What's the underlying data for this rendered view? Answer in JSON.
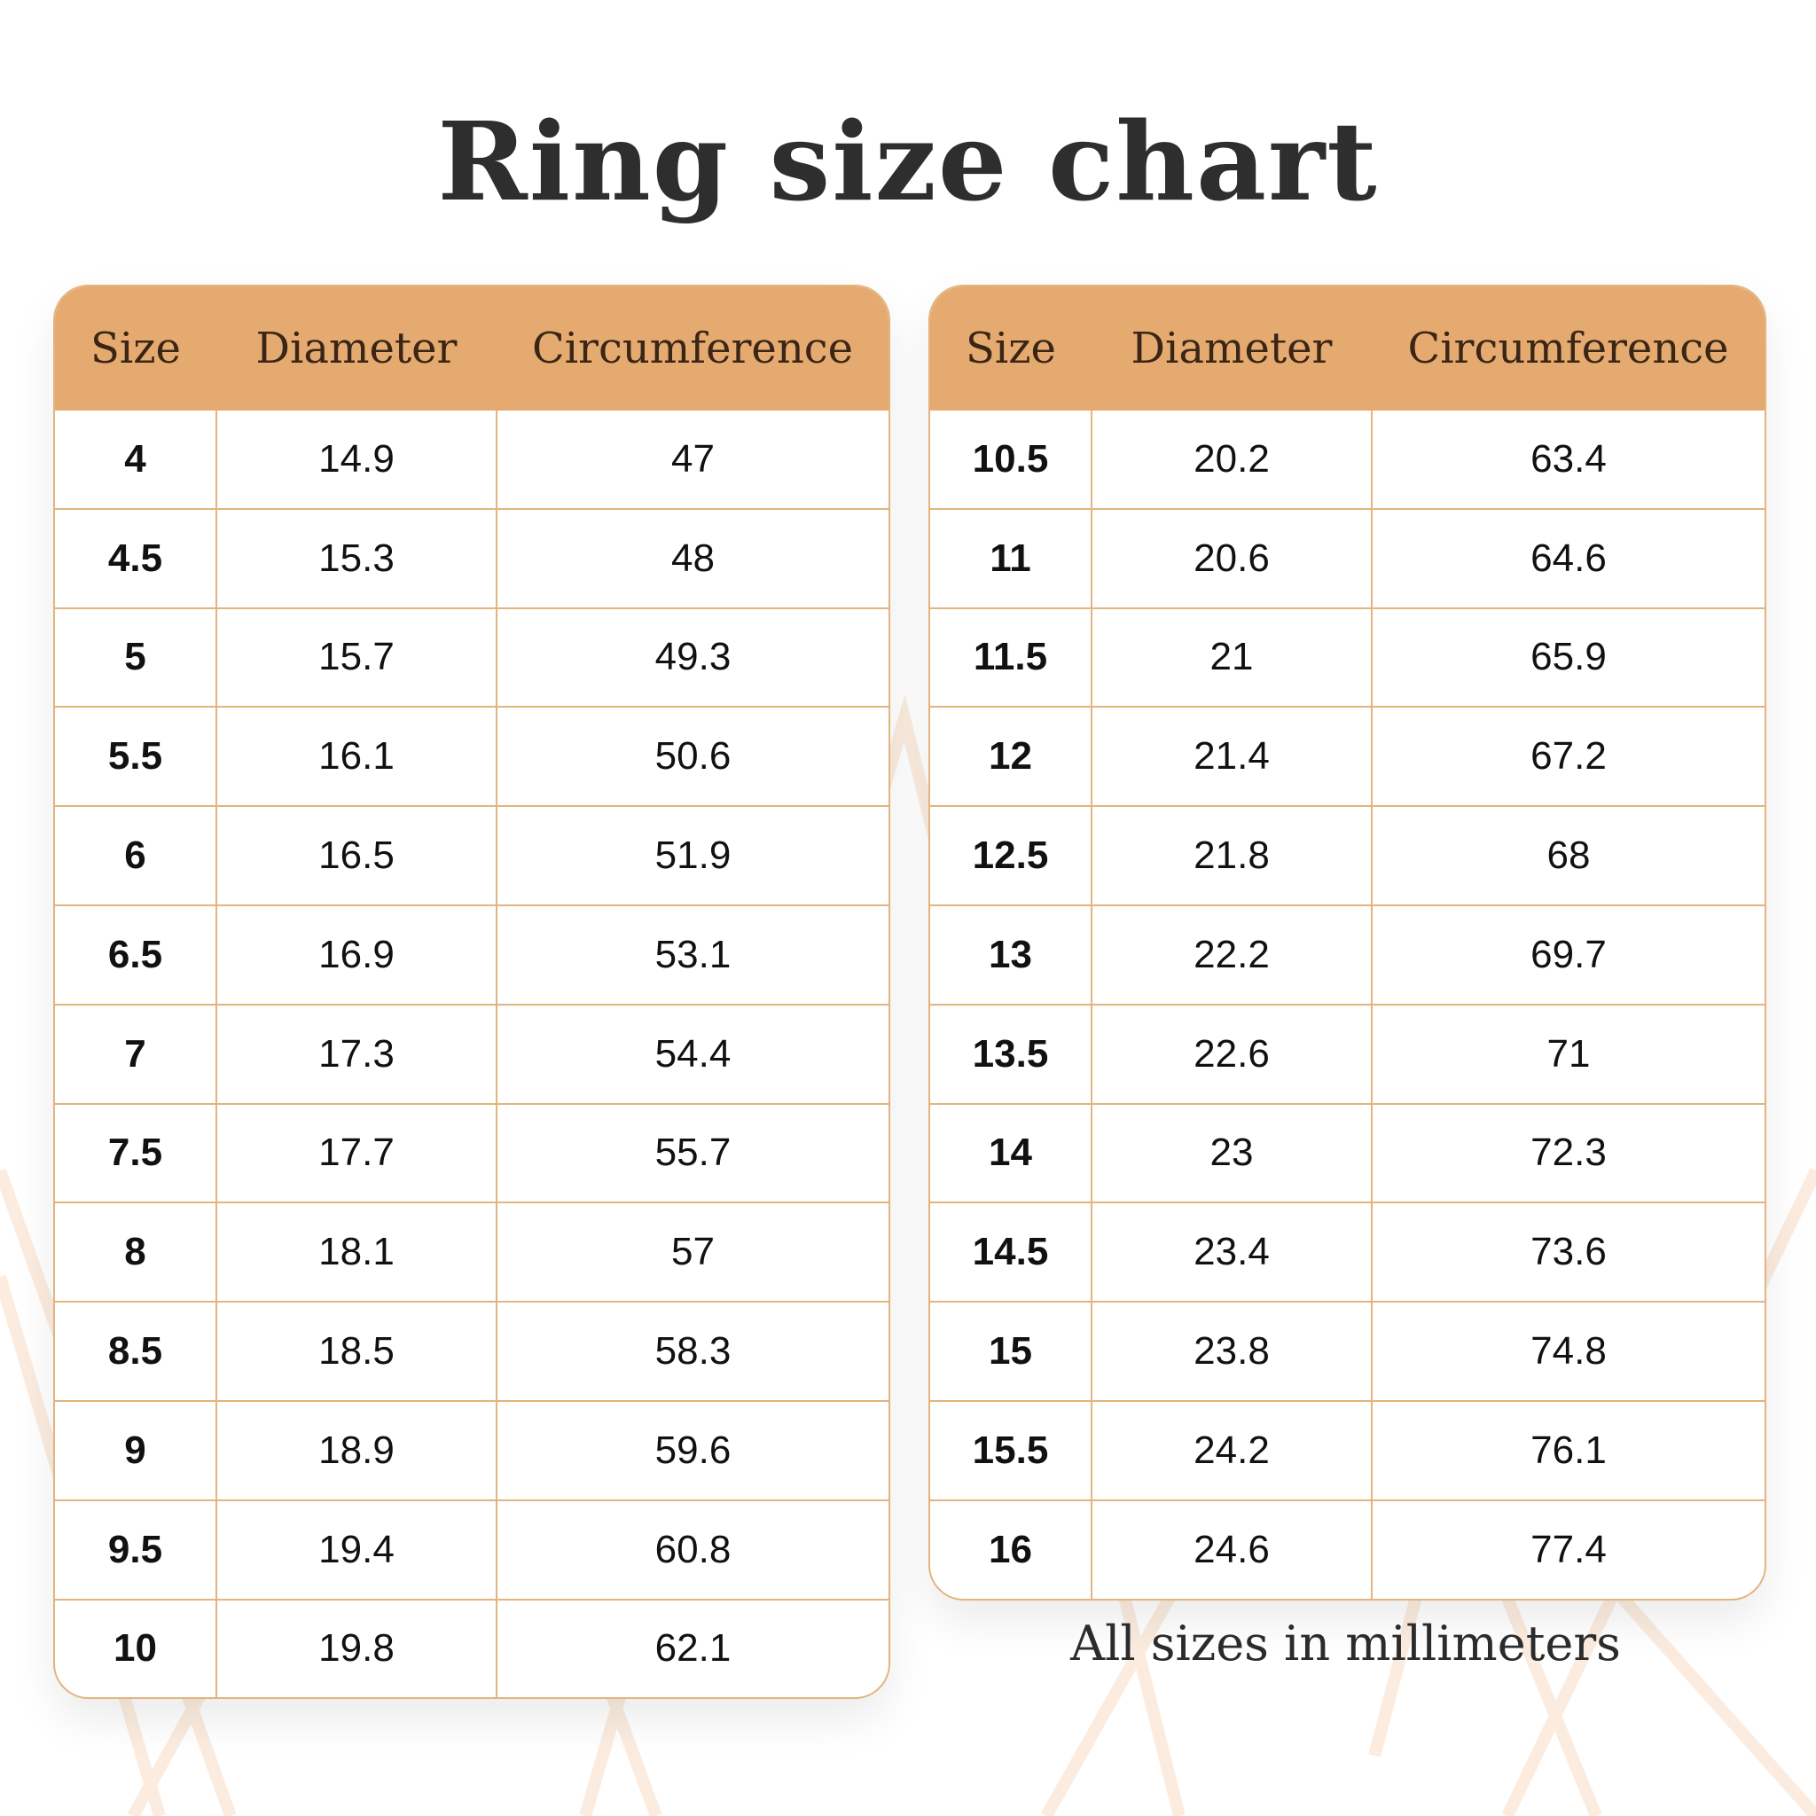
{
  "title": "Ring size chart",
  "columns": [
    "Size",
    "Diameter",
    "Circumference"
  ],
  "left_table": [
    [
      "4",
      "14.9",
      "47"
    ],
    [
      "4.5",
      "15.3",
      "48"
    ],
    [
      "5",
      "15.7",
      "49.3"
    ],
    [
      "5.5",
      "16.1",
      "50.6"
    ],
    [
      "6",
      "16.5",
      "51.9"
    ],
    [
      "6.5",
      "16.9",
      "53.1"
    ],
    [
      "7",
      "17.3",
      "54.4"
    ],
    [
      "7.5",
      "17.7",
      "55.7"
    ],
    [
      "8",
      "18.1",
      "57"
    ],
    [
      "8.5",
      "18.5",
      "58.3"
    ],
    [
      "9",
      "18.9",
      "59.6"
    ],
    [
      "9.5",
      "19.4",
      "60.8"
    ],
    [
      "10",
      "19.8",
      "62.1"
    ]
  ],
  "right_table": [
    [
      "10.5",
      "20.2",
      "63.4"
    ],
    [
      "11",
      "20.6",
      "64.6"
    ],
    [
      "11.5",
      "21",
      "65.9"
    ],
    [
      "12",
      "21.4",
      "67.2"
    ],
    [
      "12.5",
      "21.8",
      "68"
    ],
    [
      "13",
      "22.2",
      "69.7"
    ],
    [
      "13.5",
      "22.6",
      "71"
    ],
    [
      "14",
      "23",
      "72.3"
    ],
    [
      "14.5",
      "23.4",
      "73.6"
    ],
    [
      "15",
      "23.8",
      "74.8"
    ],
    [
      "15.5",
      "24.2",
      "76.1"
    ],
    [
      "16",
      "24.6",
      "77.4"
    ]
  ],
  "footnote": "All sizes in millimeters",
  "colors": {
    "header": "#e5aa6f",
    "border": "#e2b47e",
    "background_lines": "#fbeadb"
  }
}
